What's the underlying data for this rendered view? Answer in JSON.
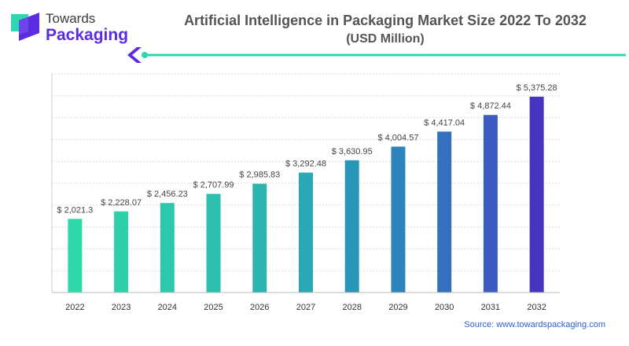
{
  "brand": {
    "line1": "Towards",
    "line2": "Packaging",
    "icon": "towards-packaging-logo-icon",
    "colors": {
      "teal": "#2fd6b2",
      "purple": "#5a2ee0"
    }
  },
  "source": "Source: www.towardspackaging.com",
  "chart_data": {
    "type": "bar",
    "title": "Artificial Intelligence in Packaging Market Size 2022 To 2032",
    "subtitle": "(USD Million)",
    "xlabel": "",
    "ylabel": "",
    "categories": [
      "2022",
      "2023",
      "2024",
      "2025",
      "2026",
      "2027",
      "2028",
      "2029",
      "2030",
      "2031",
      "2032"
    ],
    "values": [
      2021.3,
      2228.07,
      2456.23,
      2707.99,
      2985.83,
      3292.48,
      3630.95,
      4004.57,
      4417.04,
      4872.44,
      5375.28
    ],
    "value_labels": [
      "$ 2,021.3",
      "$ 2,228.07",
      "$ 2,456.23",
      "$ 2,707.99",
      "$ 2,985.83",
      "$ 3,292.48",
      "$ 3,630.95",
      "$ 4,004.57",
      "$ 4,417.04",
      "$ 4,872.44",
      "$ 5,375.28"
    ],
    "ylim": [
      0,
      6000
    ],
    "grid": true,
    "legend": "none",
    "colors": [
      "#2fd8a8",
      "#2ed0aa",
      "#2dc8ab",
      "#2cbfad",
      "#2bb4b0",
      "#2aa8b3",
      "#2996b8",
      "#2d84bc",
      "#3370be",
      "#3a5bbf",
      "#4434bf"
    ]
  }
}
